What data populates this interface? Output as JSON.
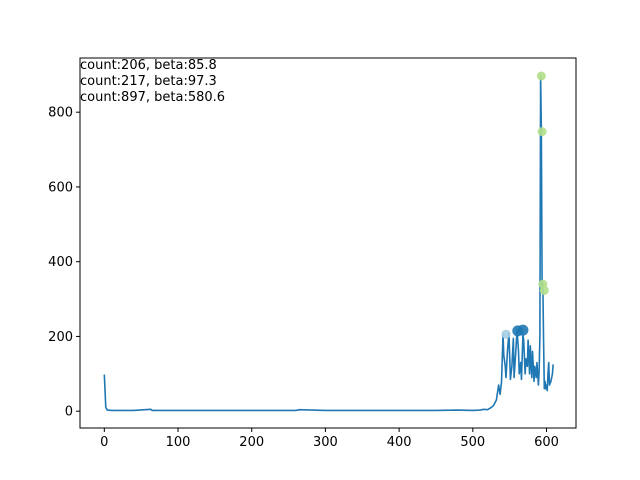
{
  "chart_data": {
    "type": "line",
    "title": "",
    "xlabel": "",
    "ylabel": "",
    "xlim": [
      -33,
      640
    ],
    "ylim": [
      -45,
      945
    ],
    "x_ticks": [
      0,
      100,
      200,
      300,
      400,
      500,
      600
    ],
    "y_ticks": [
      0,
      200,
      400,
      600,
      800
    ],
    "grid": false,
    "legend": "none",
    "line_color": "#1f77b4",
    "series": [
      {
        "x": [
          0,
          2,
          4,
          10,
          20,
          40,
          63,
          65,
          80,
          100,
          150,
          200,
          260,
          265,
          300,
          350,
          400,
          450,
          480,
          500,
          510,
          515,
          520,
          525,
          528,
          532,
          535,
          537,
          539,
          541,
          542,
          544,
          545,
          547,
          549,
          551,
          553,
          555,
          556,
          558,
          560,
          562,
          563,
          565,
          566,
          568,
          569,
          571,
          572,
          574,
          575,
          577,
          578,
          580,
          581,
          583,
          584,
          586,
          587,
          589,
          590,
          591,
          592,
          593,
          594,
          595,
          596,
          597,
          598,
          599,
          600,
          601,
          602,
          603,
          604,
          605,
          606,
          607,
          608,
          609
        ],
        "y": [
          98,
          10,
          3,
          2,
          2,
          2,
          5,
          2,
          2,
          2,
          2,
          2,
          2,
          4,
          2,
          2,
          2,
          2,
          3,
          2,
          3,
          5,
          4,
          10,
          15,
          30,
          70,
          45,
          80,
          205,
          150,
          120,
          90,
          160,
          210,
          85,
          120,
          195,
          90,
          150,
          217,
          160,
          100,
          130,
          85,
          205,
          190,
          100,
          140,
          120,
          190,
          100,
          175,
          90,
          160,
          80,
          120,
          90,
          130,
          70,
          110,
          200,
          897,
          750,
          330,
          340,
          190,
          60,
          80,
          60,
          70,
          55,
          100,
          130,
          70,
          75,
          80,
          90,
          100,
          125
        ]
      }
    ],
    "markers": [
      {
        "x": 545,
        "y": 206,
        "size": "medium",
        "color": "#a6cee3"
      },
      {
        "x": 561,
        "y": 215,
        "size": "large",
        "color": "#1f78b4"
      },
      {
        "x": 568,
        "y": 217,
        "size": "large",
        "color": "#1f78b4"
      },
      {
        "x": 593,
        "y": 897,
        "size": "medium",
        "color": "#b2df8a"
      },
      {
        "x": 594,
        "y": 748,
        "size": "medium",
        "color": "#b2df8a"
      },
      {
        "x": 595,
        "y": 340,
        "size": "medium",
        "color": "#b2df8a"
      },
      {
        "x": 597,
        "y": 323,
        "size": "medium",
        "color": "#b2df8a"
      }
    ],
    "annotations": [
      "count:206, beta:85.8",
      "count:217, beta:97.3",
      "count:897, beta:580.6"
    ]
  }
}
